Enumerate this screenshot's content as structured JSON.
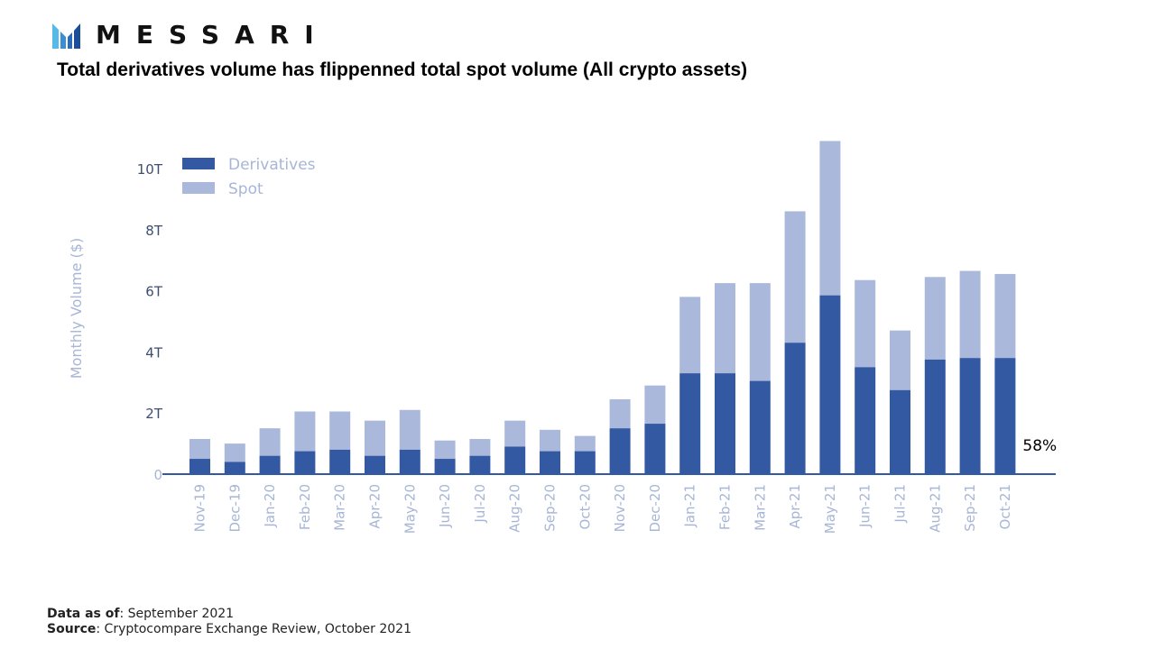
{
  "header": {
    "logo_text": "MESSARI",
    "title": "Total derivatives volume has flippenned total spot volume (All crypto assets)"
  },
  "colors": {
    "derivatives": "#3359a3",
    "spot": "#aab9db",
    "axis_text": "#a7b6d6",
    "tick_text": "#3d4e6e",
    "axis_line": "#3359a3"
  },
  "chart_data": {
    "type": "bar",
    "stacked": true,
    "title": "",
    "xlabel": "",
    "ylabel": "Monthly Volume ($)",
    "ylim": [
      0,
      10.5
    ],
    "yticks": [
      0,
      2,
      4,
      6,
      8,
      10
    ],
    "ytick_labels": [
      "0",
      "2T",
      "4T",
      "6T",
      "8T",
      "10T"
    ],
    "legend_position": "top-left",
    "categories": [
      "Nov-19",
      "Dec-19",
      "Jan-20",
      "Feb-20",
      "Mar-20",
      "Apr-20",
      "May-20",
      "Jun-20",
      "Jul-20",
      "Aug-20",
      "Sep-20",
      "Oct-20",
      "Nov-20",
      "Dec-20",
      "Jan-21",
      "Feb-21",
      "Mar-21",
      "Apr-21",
      "May-21",
      "Jun-21",
      "Jul-21",
      "Aug-21",
      "Sep-21",
      "Oct-21"
    ],
    "series": [
      {
        "name": "Derivatives",
        "values": [
          0.5,
          0.4,
          0.6,
          0.75,
          0.8,
          0.6,
          0.8,
          0.5,
          0.6,
          0.9,
          0.75,
          0.75,
          1.5,
          1.65,
          3.3,
          3.3,
          3.05,
          4.3,
          5.85,
          3.5,
          2.75,
          3.75,
          3.8,
          3.8
        ]
      },
      {
        "name": "Spot",
        "values": [
          0.65,
          0.6,
          0.9,
          1.3,
          1.25,
          1.15,
          1.3,
          0.6,
          0.55,
          0.85,
          0.7,
          0.5,
          0.95,
          1.25,
          2.5,
          2.95,
          3.2,
          4.3,
          5.05,
          2.85,
          1.95,
          2.7,
          2.85,
          2.75
        ]
      }
    ],
    "annotations": [
      {
        "text": "58%",
        "category": "Oct-21"
      }
    ]
  },
  "footer": {
    "data_as_of_label": "Data as of",
    "data_as_of_value": ": September 2021",
    "source_label": "Source",
    "source_value": ": Cryptocompare Exchange Review, October 2021"
  }
}
